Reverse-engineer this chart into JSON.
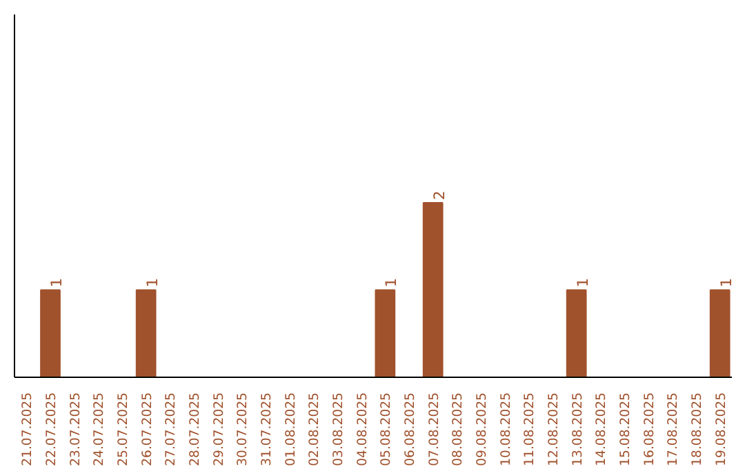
{
  "chart_data": {
    "type": "bar",
    "categories": [
      "21.07.2025",
      "22.07.2025",
      "23.07.2025",
      "24.07.2025",
      "25.07.2025",
      "26.07.2025",
      "27.07.2025",
      "28.07.2025",
      "29.07.2025",
      "30.07.2025",
      "31.07.2025",
      "01.08.2025",
      "02.08.2025",
      "03.08.2025",
      "04.08.2025",
      "05.08.2025",
      "06.08.2025",
      "07.08.2025",
      "08.08.2025",
      "09.08.2025",
      "10.08.2025",
      "11.08.2025",
      "12.08.2025",
      "13.08.2025",
      "14.08.2025",
      "15.08.2025",
      "16.08.2025",
      "17.08.2025",
      "18.08.2025",
      "19.08.2025"
    ],
    "values": [
      0,
      1,
      0,
      0,
      0,
      1,
      0,
      0,
      0,
      0,
      0,
      0,
      0,
      0,
      0,
      1,
      0,
      2,
      0,
      0,
      0,
      0,
      0,
      1,
      0,
      0,
      0,
      0,
      0,
      1
    ],
    "value_labels": [
      null,
      "1",
      null,
      null,
      null,
      "1",
      null,
      null,
      null,
      null,
      null,
      null,
      null,
      null,
      null,
      "1",
      null,
      "2",
      null,
      null,
      null,
      null,
      null,
      "1",
      null,
      null,
      null,
      null,
      null,
      "1"
    ],
    "color": "#a0522d",
    "ylim": [
      0,
      4.16
    ]
  }
}
